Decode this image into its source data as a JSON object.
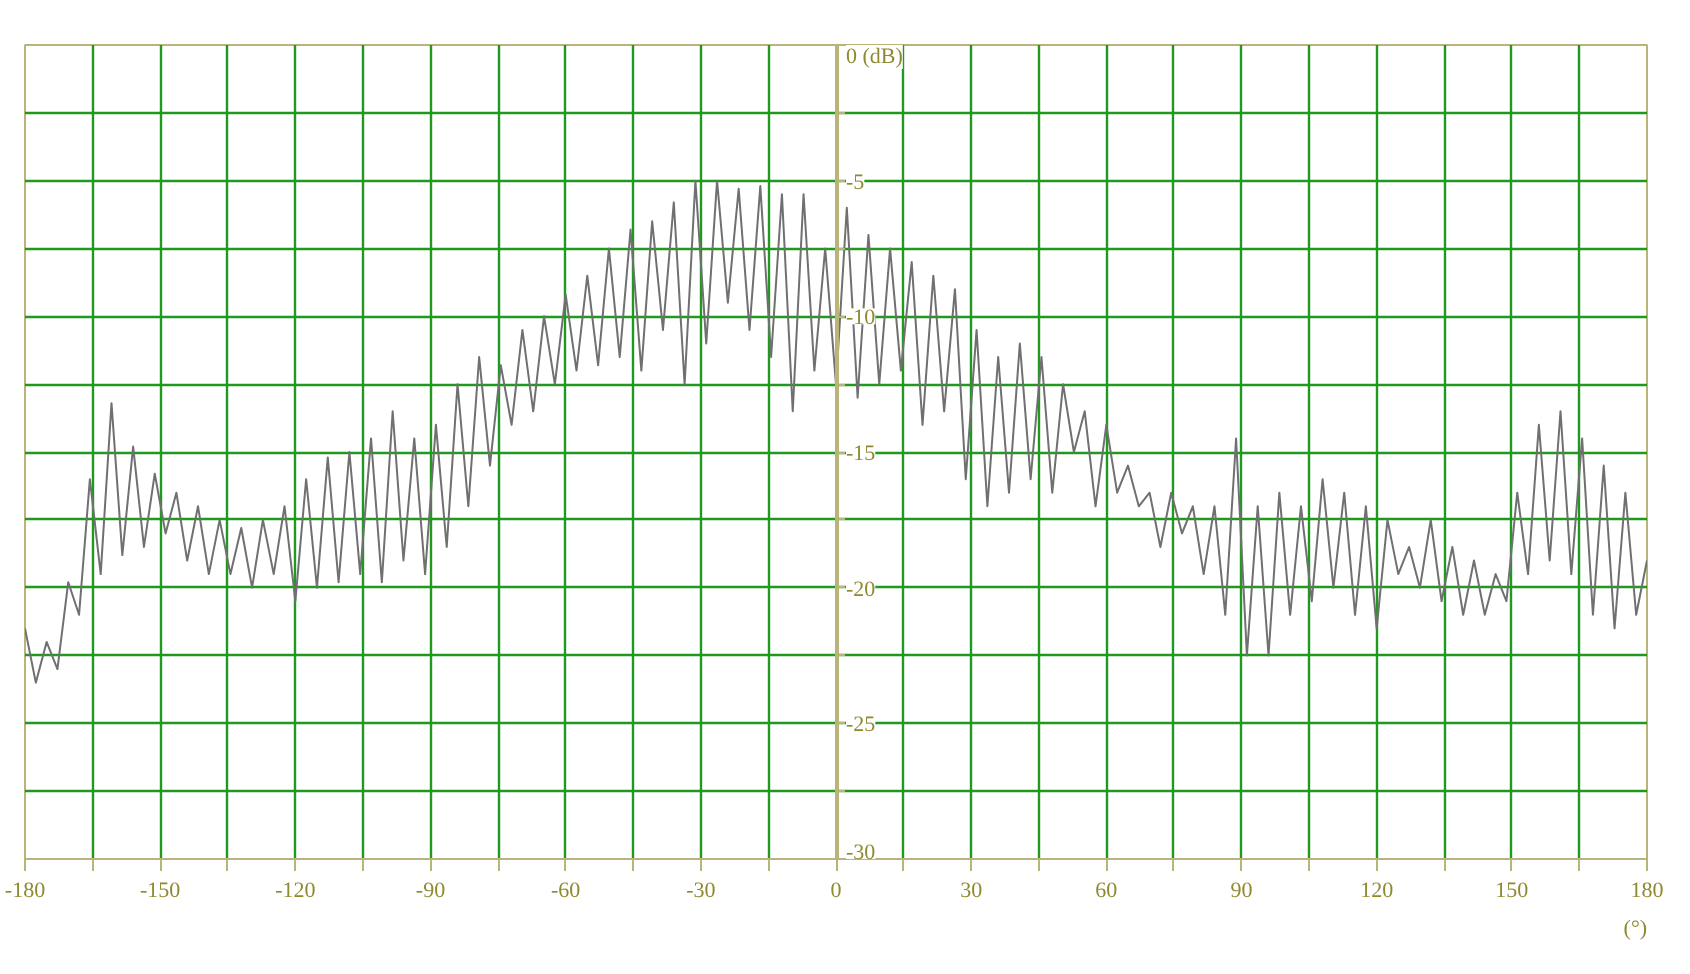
{
  "chart_data": {
    "type": "line",
    "xlabel": "(°)",
    "color": "#707070",
    "grid": true,
    "xlim": [
      -180,
      180
    ],
    "ylim": [
      -30,
      0
    ],
    "xticks": [
      -180,
      {
        "value": -165,
        "label": null
      },
      -150,
      {
        "value": -135,
        "label": null
      },
      -120,
      {
        "value": -105,
        "label": null
      },
      -90,
      {
        "value": -75,
        "label": null
      },
      -60,
      {
        "value": -45,
        "label": null
      },
      -30,
      {
        "value": -15,
        "label": null
      },
      0,
      {
        "value": 15,
        "label": null
      },
      30,
      {
        "value": 45,
        "label": null
      },
      60,
      {
        "value": 75,
        "label": null
      },
      90,
      {
        "value": 105,
        "label": null
      },
      120,
      {
        "value": 135,
        "label": null
      },
      150,
      {
        "value": 165,
        "label": null
      },
      180
    ],
    "yticks": [
      -30,
      {
        "value": -27.5,
        "label": null
      },
      -25,
      {
        "value": -22.5,
        "label": null
      },
      -20,
      {
        "value": -17.5,
        "label": null
      },
      -15,
      {
        "value": -12.5,
        "label": null
      },
      -10,
      {
        "value": -7.5,
        "label": null
      },
      -5,
      {
        "value": -2.5,
        "label": null
      },
      {
        "value": 0,
        "label": "0 (dB)"
      }
    ],
    "x": [
      -180,
      -177.6,
      -175.2,
      -172.8,
      -170.4,
      -168,
      -165.6,
      -163.2,
      -160.8,
      -158.4,
      -156,
      -153.6,
      -151.2,
      -148.8,
      -146.4,
      -144,
      -141.6,
      -139.2,
      -136.8,
      -134.4,
      -132,
      -129.6,
      -127.2,
      -124.8,
      -122.4,
      -120,
      -117.6,
      -115.2,
      -112.8,
      -110.4,
      -108,
      -105.6,
      -103.2,
      -100.8,
      -98.4,
      -96,
      -93.6,
      -91.2,
      -88.8,
      -86.4,
      -84,
      -81.6,
      -79.2,
      -76.8,
      -74.4,
      -72,
      -69.6,
      -67.2,
      -64.8,
      -62.4,
      -60,
      -57.6,
      -55.2,
      -52.8,
      -50.4,
      -48,
      -45.6,
      -43.2,
      -40.8,
      -38.4,
      -36,
      -33.6,
      -31.2,
      -28.8,
      -26.4,
      -24,
      -21.6,
      -19.2,
      -16.8,
      -14.4,
      -12,
      -9.6,
      -7.2,
      -4.8,
      -2.4,
      0,
      2.4,
      4.8,
      7.2,
      9.6,
      12,
      14.4,
      16.8,
      19.2,
      21.6,
      24,
      26.4,
      28.8,
      31.2,
      33.6,
      36,
      38.4,
      40.8,
      43.2,
      45.6,
      48,
      50.4,
      52.8,
      55.2,
      57.6,
      60,
      62.4,
      64.8,
      67.2,
      69.6,
      72,
      74.4,
      76.8,
      79.2,
      81.6,
      84,
      86.4,
      88.8,
      91.2,
      93.6,
      96,
      98.4,
      100.8,
      103.2,
      105.6,
      108,
      110.4,
      112.8,
      115.2,
      117.6,
      120,
      122.4,
      124.8,
      127.2,
      129.6,
      132,
      134.4,
      136.8,
      139.2,
      141.6,
      144,
      146.4,
      148.8,
      151.2,
      153.6,
      156,
      158.4,
      160.8,
      163.2,
      165.6,
      168,
      170.4,
      172.8,
      175.2,
      177.6,
      180
    ],
    "values": [
      -21.5,
      -23.5,
      -22,
      -23,
      -19.8,
      -21,
      -16,
      -19.5,
      -13.2,
      -18.8,
      -14.8,
      -18.5,
      -15.8,
      -18,
      -16.5,
      -19,
      -17,
      -19.5,
      -17.5,
      -19.5,
      -17.8,
      -20,
      -17.5,
      -19.5,
      -17,
      -20.5,
      -16,
      -20,
      -15.2,
      -19.8,
      -15,
      -19.5,
      -14.5,
      -19.8,
      -13.5,
      -19,
      -14.5,
      -19.5,
      -14,
      -18.5,
      -12.5,
      -17,
      -11.5,
      -15.5,
      -11.8,
      -14,
      -10.5,
      -13.5,
      -10,
      -12.5,
      -9.2,
      -12,
      -8.5,
      -11.8,
      -7.5,
      -11.5,
      -6.8,
      -12,
      -6.5,
      -10.5,
      -5.8,
      -12.5,
      -5,
      -11,
      -5,
      -9.5,
      -5.3,
      -10.5,
      -5.2,
      -11.5,
      -5.5,
      -13.5,
      -5.5,
      -12,
      -7.5,
      -12.5,
      -6,
      -13,
      -7,
      -12.5,
      -7.5,
      -12,
      -8,
      -14,
      -8.5,
      -13.5,
      -9,
      -16,
      -10.5,
      -17,
      -11.5,
      -16.5,
      -11,
      -16,
      -11.5,
      -16.5,
      -12.5,
      -15,
      -13.5,
      -17,
      -14,
      -16.5,
      -15.5,
      -17,
      -16.5,
      -18.5,
      -16.5,
      -18,
      -17,
      -19.5,
      -17,
      -21,
      -14.5,
      -22.5,
      -17,
      -22.5,
      -16.5,
      -21,
      -17,
      -20.5,
      -16,
      -20,
      -16.5,
      -21,
      -17,
      -21.5,
      -17.5,
      -19.5,
      -18.5,
      -20,
      -17.5,
      -20.5,
      -18.5,
      -21,
      -19,
      -21,
      -19.5,
      -20.5,
      -16.5,
      -19.5,
      -14,
      -19,
      -13.5,
      -19.5,
      -14.5,
      -21,
      -15.5,
      -21.5,
      -16.5,
      -21,
      -19
    ]
  }
}
